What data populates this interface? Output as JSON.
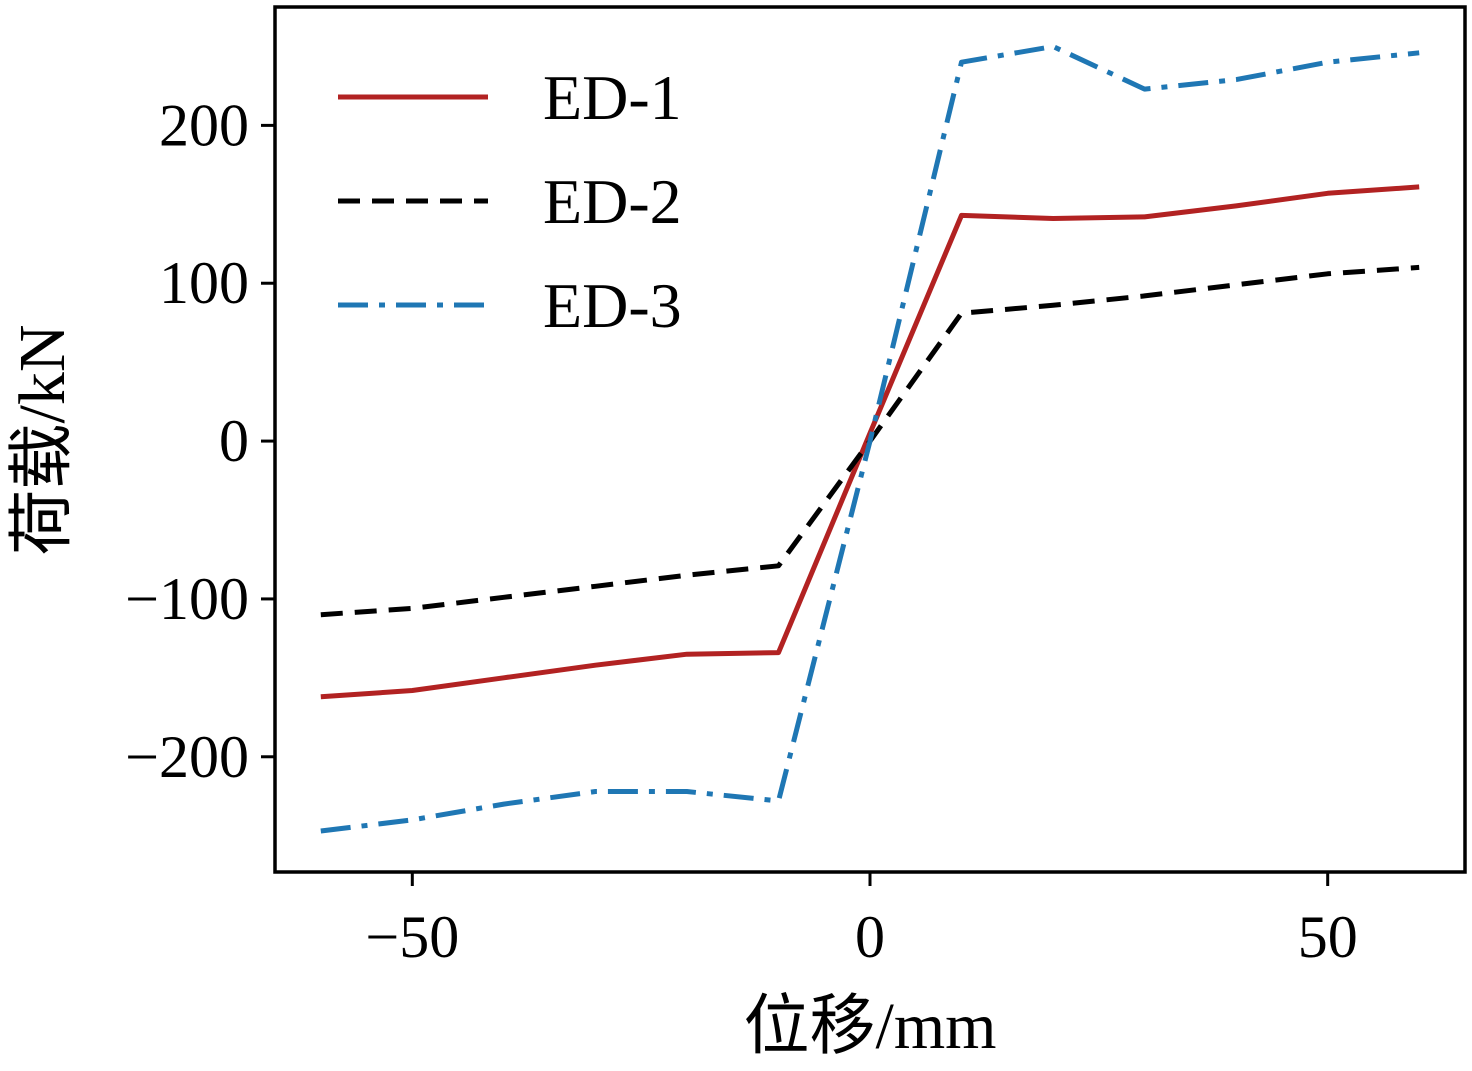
{
  "chart_data": {
    "type": "line",
    "xlabel": "位移/mm",
    "ylabel": "荷载/kN",
    "xlim": [
      -65,
      65
    ],
    "ylim": [
      -273,
      275
    ],
    "xticks": [
      -50,
      0,
      50
    ],
    "xtick_labels": [
      "−50",
      "0",
      "50"
    ],
    "yticks": [
      -200,
      -100,
      0,
      100,
      200
    ],
    "ytick_labels": [
      "−200",
      "−100",
      "0",
      "100",
      "200"
    ],
    "grid": false,
    "legend_position": "top-left",
    "series": [
      {
        "name": "ED-1",
        "color": "#b22222",
        "dash": "solid",
        "x": [
          -60,
          -50,
          -40,
          -30,
          -20,
          -10,
          0,
          10,
          20,
          30,
          40,
          50,
          60
        ],
        "y": [
          -162,
          -158,
          -150,
          -142,
          -135,
          -134,
          5,
          143,
          141,
          142,
          149,
          157,
          161
        ]
      },
      {
        "name": "ED-2",
        "color": "#000000",
        "dash": "dashed",
        "x": [
          -60,
          -50,
          -40,
          -30,
          -20,
          -10,
          0,
          10,
          20,
          30,
          40,
          50,
          60
        ],
        "y": [
          -110,
          -106,
          -99,
          -92,
          -85,
          -79,
          0,
          81,
          86,
          92,
          99,
          106,
          110
        ]
      },
      {
        "name": "ED-3",
        "color": "#1f77b4",
        "dash": "dashdot",
        "x": [
          -60,
          -50,
          -40,
          -30,
          -20,
          -10,
          0,
          10,
          20,
          30,
          40,
          50,
          60
        ],
        "y": [
          -247,
          -240,
          -230,
          -222,
          -222,
          -228,
          0,
          240,
          250,
          223,
          229,
          240,
          246
        ]
      }
    ]
  }
}
